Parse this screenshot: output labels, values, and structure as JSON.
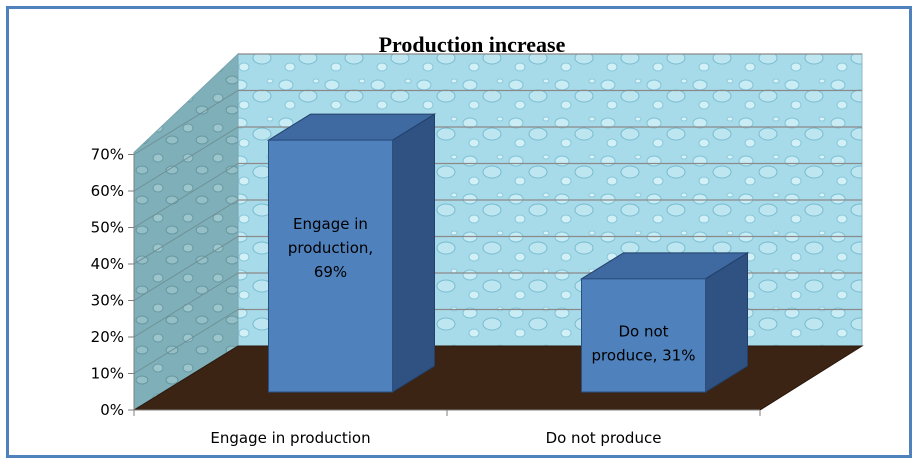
{
  "chart_data": {
    "type": "bar",
    "title": "Production increase",
    "categories": [
      "Engage in production",
      "Do not produce"
    ],
    "values": [
      69,
      31
    ],
    "data_labels": [
      [
        "Engage in",
        "production,",
        "69%"
      ],
      [
        "Do not",
        "produce, 31%"
      ]
    ],
    "y_ticks": [
      "0%",
      "10%",
      "20%",
      "30%",
      "40%",
      "50%",
      "60%",
      "70%"
    ],
    "ylim": [
      0,
      70
    ],
    "grid": true,
    "style": "3d-column",
    "colors": {
      "bar_front": "#4f81bd",
      "bar_side": "#2f5283",
      "bar_top": "#3f6aa1",
      "wall": "#9fd6e6",
      "floor": "#3b2414",
      "frame": "#4f81bd"
    }
  }
}
